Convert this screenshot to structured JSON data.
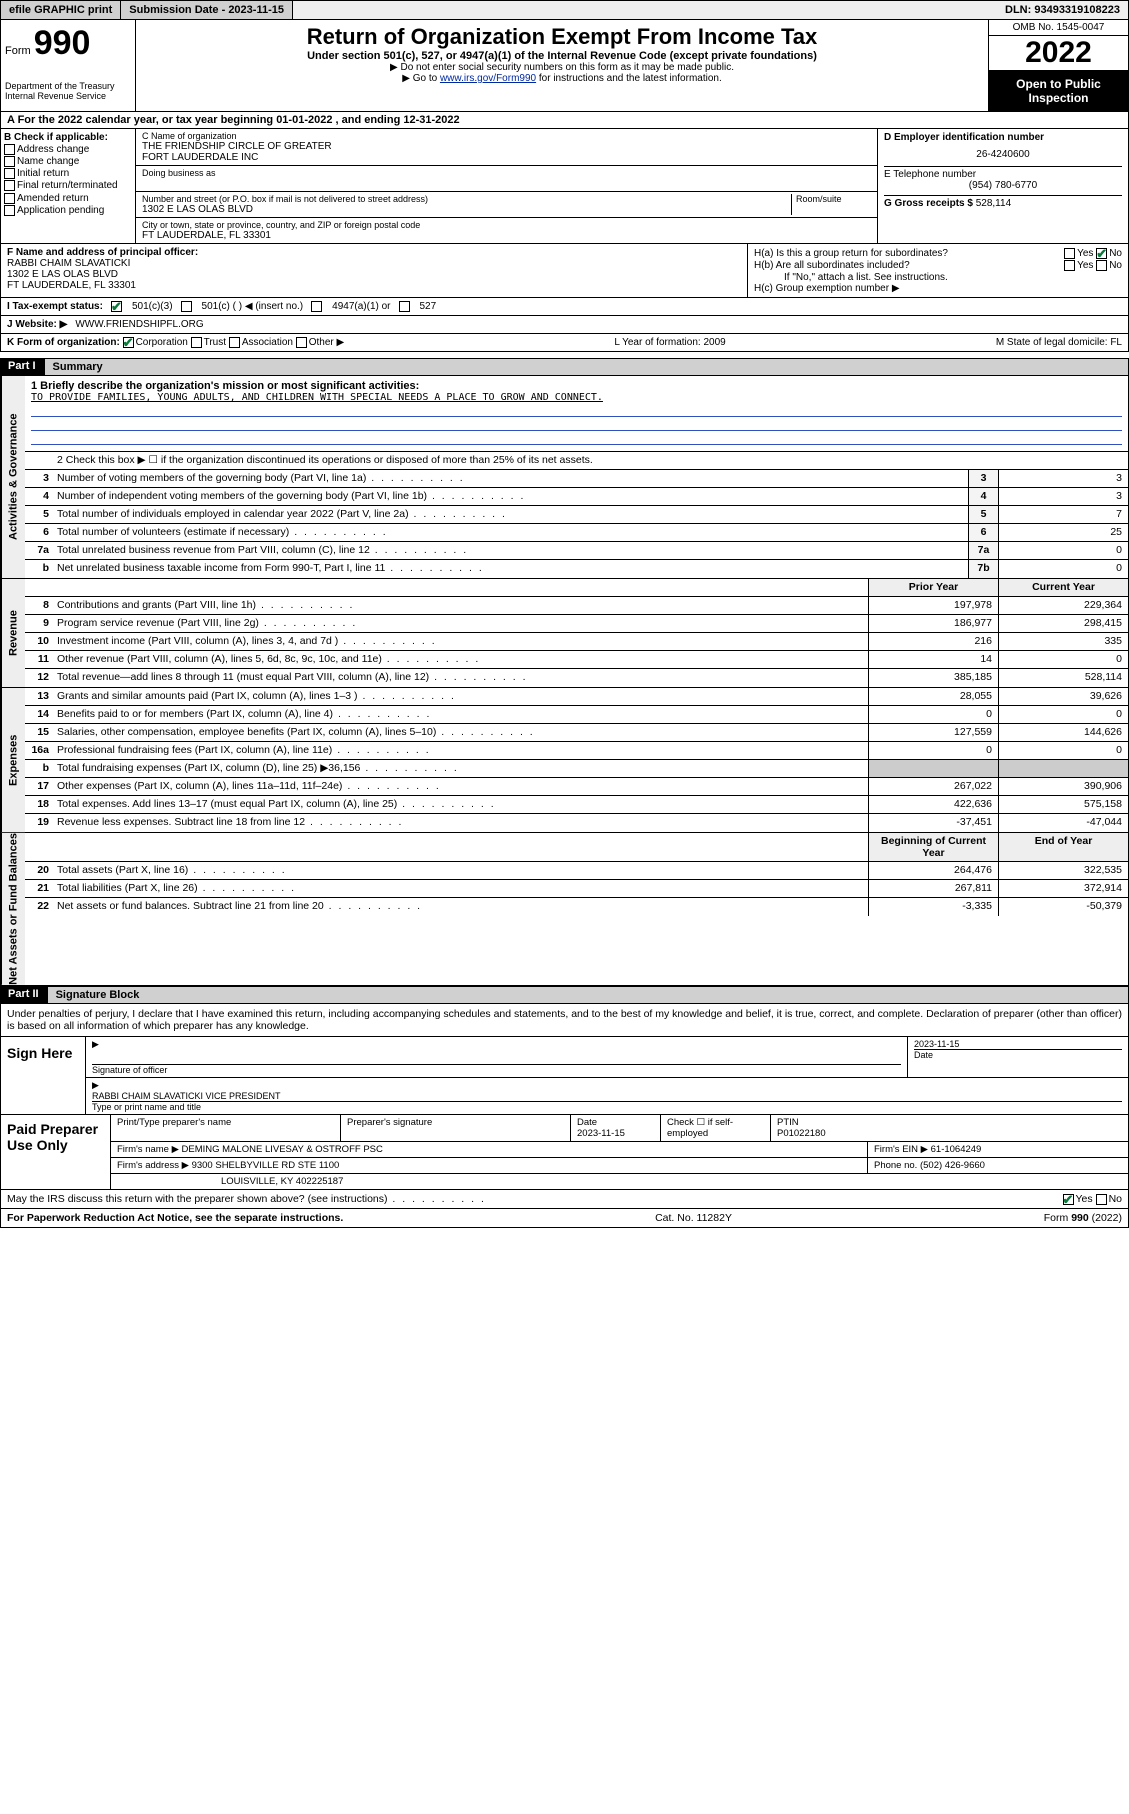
{
  "topbar": {
    "efile": "efile GRAPHIC print",
    "sub_lbl": "Submission Date - 2023-11-15",
    "dln": "DLN: 93493319108223"
  },
  "header": {
    "form_word": "Form",
    "form_num": "990",
    "dept": "Department of the Treasury",
    "irs": "Internal Revenue Service",
    "title": "Return of Organization Exempt From Income Tax",
    "sub": "Under section 501(c), 527, or 4947(a)(1) of the Internal Revenue Code (except private foundations)",
    "notice1": "▶ Do not enter social security numbers on this form as it may be made public.",
    "notice2_a": "▶ Go to ",
    "notice2_link": "www.irs.gov/Form990",
    "notice2_b": " for instructions and the latest information.",
    "omb": "OMB No. 1545-0047",
    "year": "2022",
    "inspect": "Open to Public Inspection"
  },
  "rowA": "A For the 2022 calendar year, or tax year beginning 01-01-2022   , and ending 12-31-2022",
  "colB": {
    "hdr": "B Check if applicable:",
    "o1": "Address change",
    "o2": "Name change",
    "o3": "Initial return",
    "o4": "Final return/terminated",
    "o5": "Amended return",
    "o6": "Application pending"
  },
  "colC": {
    "name_lbl": "C Name of organization",
    "name1": "THE FRIENDSHIP CIRCLE OF GREATER",
    "name2": "FORT LAUDERDALE INC",
    "dba_lbl": "Doing business as",
    "addr_lbl": "Number and street (or P.O. box if mail is not delivered to street address)",
    "room_lbl": "Room/suite",
    "addr": "1302 E LAS OLAS BLVD",
    "city_lbl": "City or town, state or province, country, and ZIP or foreign postal code",
    "city": "FT LAUDERDALE, FL  33301"
  },
  "colD": {
    "ein_lbl": "D Employer identification number",
    "ein": "26-4240600",
    "tel_lbl": "E Telephone number",
    "tel": "(954) 780-6770",
    "gross_lbl": "G Gross receipts $",
    "gross": "528,114"
  },
  "colF": {
    "lbl": "F Name and address of principal officer:",
    "l1": "RABBI CHAIM SLAVATICKI",
    "l2": "1302 E LAS OLAS BLVD",
    "l3": "FT LAUDERDALE, FL  33301"
  },
  "colH": {
    "a": "H(a)  Is this a group return for subordinates?",
    "a_yes": "Yes",
    "a_no": "No",
    "b": "H(b)  Are all subordinates included?",
    "b_note": "If \"No,\" attach a list. See instructions.",
    "c": "H(c)  Group exemption number ▶"
  },
  "rowI": {
    "lbl": "I   Tax-exempt status:",
    "o1": "501(c)(3)",
    "o2": "501(c) (  ) ◀ (insert no.)",
    "o3": "4947(a)(1) or",
    "o4": "527"
  },
  "rowJ": {
    "lbl": "J   Website: ▶",
    "val": "WWW.FRIENDSHIPFL.ORG"
  },
  "rowK": {
    "lbl": "K Form of organization:",
    "o1": "Corporation",
    "o2": "Trust",
    "o3": "Association",
    "o4": "Other ▶",
    "L": "L Year of formation: 2009",
    "M": "M State of legal domicile: FL"
  },
  "part1": {
    "hdr": "Part I",
    "title": "Summary"
  },
  "mission": {
    "lbl": "1   Briefly describe the organization's mission or most significant activities:",
    "text": "TO PROVIDE FAMILIES, YOUNG ADULTS, AND CHILDREN WITH SPECIAL NEEDS A PLACE TO GROW AND CONNECT."
  },
  "gov": {
    "l2": "2   Check this box ▶ ☐ if the organization discontinued its operations or disposed of more than 25% of its net assets.",
    "rows": [
      {
        "n": "3",
        "d": "Number of voting members of the governing body (Part VI, line 1a)",
        "b": "3",
        "v": "3"
      },
      {
        "n": "4",
        "d": "Number of independent voting members of the governing body (Part VI, line 1b)",
        "b": "4",
        "v": "3"
      },
      {
        "n": "5",
        "d": "Total number of individuals employed in calendar year 2022 (Part V, line 2a)",
        "b": "5",
        "v": "7"
      },
      {
        "n": "6",
        "d": "Total number of volunteers (estimate if necessary)",
        "b": "6",
        "v": "25"
      },
      {
        "n": "7a",
        "d": "Total unrelated business revenue from Part VIII, column (C), line 12",
        "b": "7a",
        "v": "0"
      },
      {
        "n": "b",
        "d": "Net unrelated business taxable income from Form 990-T, Part I, line 11",
        "b": "7b",
        "v": "0"
      }
    ]
  },
  "rev": {
    "hdr_prior": "Prior Year",
    "hdr_curr": "Current Year",
    "rows": [
      {
        "n": "8",
        "d": "Contributions and grants (Part VIII, line 1h)",
        "p": "197,978",
        "c": "229,364"
      },
      {
        "n": "9",
        "d": "Program service revenue (Part VIII, line 2g)",
        "p": "186,977",
        "c": "298,415"
      },
      {
        "n": "10",
        "d": "Investment income (Part VIII, column (A), lines 3, 4, and 7d )",
        "p": "216",
        "c": "335"
      },
      {
        "n": "11",
        "d": "Other revenue (Part VIII, column (A), lines 5, 6d, 8c, 9c, 10c, and 11e)",
        "p": "14",
        "c": "0"
      },
      {
        "n": "12",
        "d": "Total revenue—add lines 8 through 11 (must equal Part VIII, column (A), line 12)",
        "p": "385,185",
        "c": "528,114"
      }
    ]
  },
  "exp": {
    "rows": [
      {
        "n": "13",
        "d": "Grants and similar amounts paid (Part IX, column (A), lines 1–3 )",
        "p": "28,055",
        "c": "39,626"
      },
      {
        "n": "14",
        "d": "Benefits paid to or for members (Part IX, column (A), line 4)",
        "p": "0",
        "c": "0"
      },
      {
        "n": "15",
        "d": "Salaries, other compensation, employee benefits (Part IX, column (A), lines 5–10)",
        "p": "127,559",
        "c": "144,626"
      },
      {
        "n": "16a",
        "d": "Professional fundraising fees (Part IX, column (A), line 11e)",
        "p": "0",
        "c": "0"
      },
      {
        "n": "b",
        "d": "Total fundraising expenses (Part IX, column (D), line 25) ▶36,156",
        "p": "",
        "c": "",
        "shade": true
      },
      {
        "n": "17",
        "d": "Other expenses (Part IX, column (A), lines 11a–11d, 11f–24e)",
        "p": "267,022",
        "c": "390,906"
      },
      {
        "n": "18",
        "d": "Total expenses. Add lines 13–17 (must equal Part IX, column (A), line 25)",
        "p": "422,636",
        "c": "575,158"
      },
      {
        "n": "19",
        "d": "Revenue less expenses. Subtract line 18 from line 12",
        "p": "-37,451",
        "c": "-47,044"
      }
    ]
  },
  "net": {
    "hdr_beg": "Beginning of Current Year",
    "hdr_end": "End of Year",
    "rows": [
      {
        "n": "20",
        "d": "Total assets (Part X, line 16)",
        "p": "264,476",
        "c": "322,535"
      },
      {
        "n": "21",
        "d": "Total liabilities (Part X, line 26)",
        "p": "267,811",
        "c": "372,914"
      },
      {
        "n": "22",
        "d": "Net assets or fund balances. Subtract line 21 from line 20",
        "p": "-3,335",
        "c": "-50,379"
      }
    ]
  },
  "part2": {
    "hdr": "Part II",
    "title": "Signature Block"
  },
  "sig_intro": "Under penalties of perjury, I declare that I have examined this return, including accompanying schedules and statements, and to the best of my knowledge and belief, it is true, correct, and complete. Declaration of preparer (other than officer) is based on all information of which preparer has any knowledge.",
  "sign": {
    "lbl": "Sign Here",
    "sig_lbl": "Signature of officer",
    "date": "2023-11-15",
    "date_lbl": "Date",
    "name": "RABBI CHAIM SLAVATICKI VICE PRESIDENT",
    "name_lbl": "Type or print name and title"
  },
  "prep": {
    "lbl": "Paid Preparer Use Only",
    "c1": "Print/Type preparer's name",
    "c2": "Preparer's signature",
    "c3": "Date",
    "c3v": "2023-11-15",
    "c4": "Check ☐ if self-employed",
    "c5": "PTIN",
    "c5v": "P01022180",
    "firm_lbl": "Firm's name   ▶",
    "firm": "DEMING MALONE LIVESAY & OSTROFF PSC",
    "ein_lbl": "Firm's EIN ▶",
    "ein": "61-1064249",
    "addr_lbl": "Firm's address ▶",
    "addr1": "9300 SHELBYVILLE RD STE 1100",
    "addr2": "LOUISVILLE, KY  402225187",
    "phone_lbl": "Phone no.",
    "phone": "(502) 426-9660"
  },
  "discuss": {
    "q": "May the IRS discuss this return with the preparer shown above? (see instructions)",
    "yes": "Yes",
    "no": "No"
  },
  "footer": {
    "left": "For Paperwork Reduction Act Notice, see the separate instructions.",
    "mid": "Cat. No. 11282Y",
    "right": "Form 990 (2022)"
  },
  "vtabs": {
    "gov": "Activities & Governance",
    "rev": "Revenue",
    "exp": "Expenses",
    "net": "Net Assets or Fund Balances"
  }
}
